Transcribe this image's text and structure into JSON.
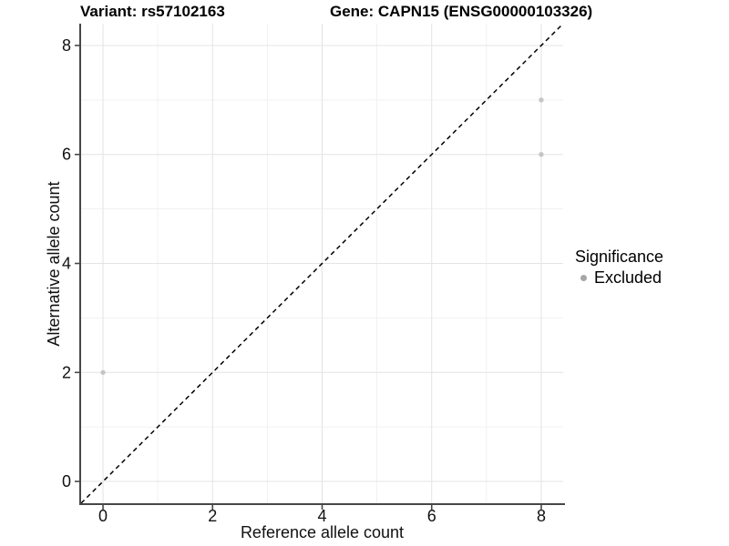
{
  "header": {
    "variant_title": "Variant: rs57102163",
    "gene_title": "Gene: CAPN15 (ENSG00000103326)"
  },
  "chart_data": {
    "type": "scatter",
    "title": "Variant: rs57102163 / Gene: CAPN15 (ENSG00000103326)",
    "xlabel": "Reference allele count",
    "ylabel": "Alternative allele count",
    "xlim": [
      -0.4,
      8.4
    ],
    "ylim": [
      -0.4,
      8.4
    ],
    "x_ticks": [
      0,
      2,
      4,
      6,
      8
    ],
    "y_ticks": [
      0,
      2,
      4,
      6,
      8
    ],
    "grid": {
      "major": true,
      "minor": true
    },
    "legend": {
      "title": "Significance",
      "position": "right",
      "entries": [
        "Excluded"
      ]
    },
    "series": [
      {
        "name": "Excluded",
        "color": "#c5c5c5",
        "legend_color": "#a6a6a6",
        "points": [
          [
            0,
            2
          ],
          [
            8,
            6
          ],
          [
            8,
            7
          ]
        ]
      }
    ],
    "reference_line": {
      "type": "identity y=x",
      "style": "dashed",
      "color": "#000000"
    }
  },
  "colors": {
    "background": "#ffffff",
    "axis_line": "#474747",
    "grid_major": "#e4e4e4",
    "grid_minor": "#f1f1f1",
    "tick_text": "#111111"
  }
}
